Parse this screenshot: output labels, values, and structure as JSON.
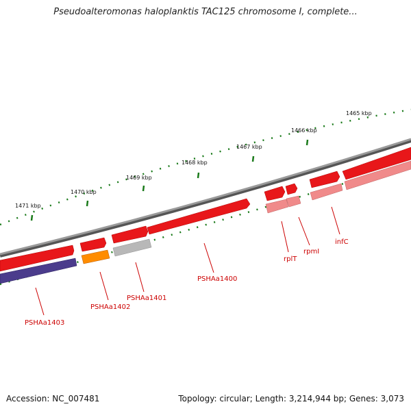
{
  "title": "Pseudoalteromonas haloplanktis TAC125 chromosome I, complete...",
  "footer": {
    "accession": "Accession: NC_007481",
    "summary": "Topology: circular; Length: 3,214,944 bp; Genes: 3,073"
  },
  "scale_ticks": [
    {
      "label": "1465 kbp"
    },
    {
      "label": "1466 kbp"
    },
    {
      "label": "1467 kbp"
    },
    {
      "label": "1468 kbp"
    },
    {
      "label": "1469 kbp"
    },
    {
      "label": "1470 kbp"
    },
    {
      "label": "1471 kbp"
    }
  ],
  "genes": [
    {
      "label": "infC",
      "color": "#e8171a",
      "strand": "forward"
    },
    {
      "label": "rpmI",
      "color": "#e8171a",
      "strand": "forward"
    },
    {
      "label": "rplT",
      "color": "#e8171a",
      "strand": "forward"
    },
    {
      "label": "PSHAa1400",
      "color": "#e8171a",
      "strand": "forward"
    },
    {
      "label": "PSHAa1401",
      "color": "#e8171a",
      "strand": "forward"
    },
    {
      "label": "PSHAa1402",
      "color": "#e8171a",
      "strand": "forward"
    },
    {
      "label": "PSHAa1403",
      "color": "#e8171a",
      "strand": "forward"
    }
  ],
  "colors": {
    "backbone": "#7a7a7a",
    "ticks": "#1a7a1a",
    "forward_gene": "#e8171a",
    "label": "#cc0000",
    "rna_feature": "#f08a8a",
    "cds_grey": "#b8b8b8",
    "cds_orange": "#ff8c00",
    "cds_purple": "#4b3c8c"
  }
}
